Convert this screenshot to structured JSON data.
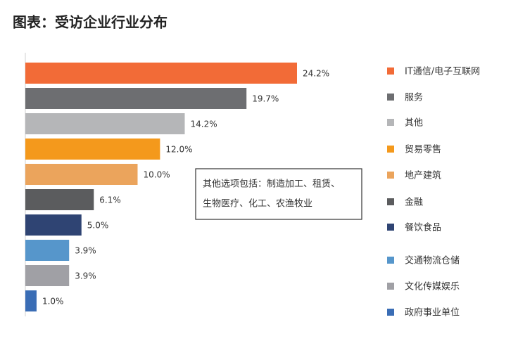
{
  "chart_data": {
    "type": "bar",
    "orientation": "horizontal",
    "title": "图表：受访企业行业分布",
    "categories": [
      "IT通信/电子互联网",
      "服务",
      "其他",
      "贸易零售",
      "地产建筑",
      "金融",
      "餐饮食品",
      "交通物流仓储",
      "文化传媒娱乐",
      "政府事业单位"
    ],
    "values": [
      24.2,
      19.7,
      14.2,
      12.0,
      10.0,
      6.1,
      5.0,
      3.9,
      3.9,
      1.0
    ],
    "value_labels": [
      "24.2%",
      "19.7%",
      "14.2%",
      "12.0%",
      "10.0%",
      "6.1%",
      "5.0%",
      "3.9%",
      "3.9%",
      "1.0%"
    ],
    "colors": [
      "#f26b37",
      "#6d6e71",
      "#b5b6b8",
      "#f4991c",
      "#eba45c",
      "#5b5c5e",
      "#2f4473",
      "#5696cb",
      "#a0a0a5",
      "#3a6db5"
    ],
    "legend": "right",
    "annotation": [
      "其他选项包括：制造加工、租赁、",
      "生物医疗、化工、农渔牧业"
    ]
  }
}
